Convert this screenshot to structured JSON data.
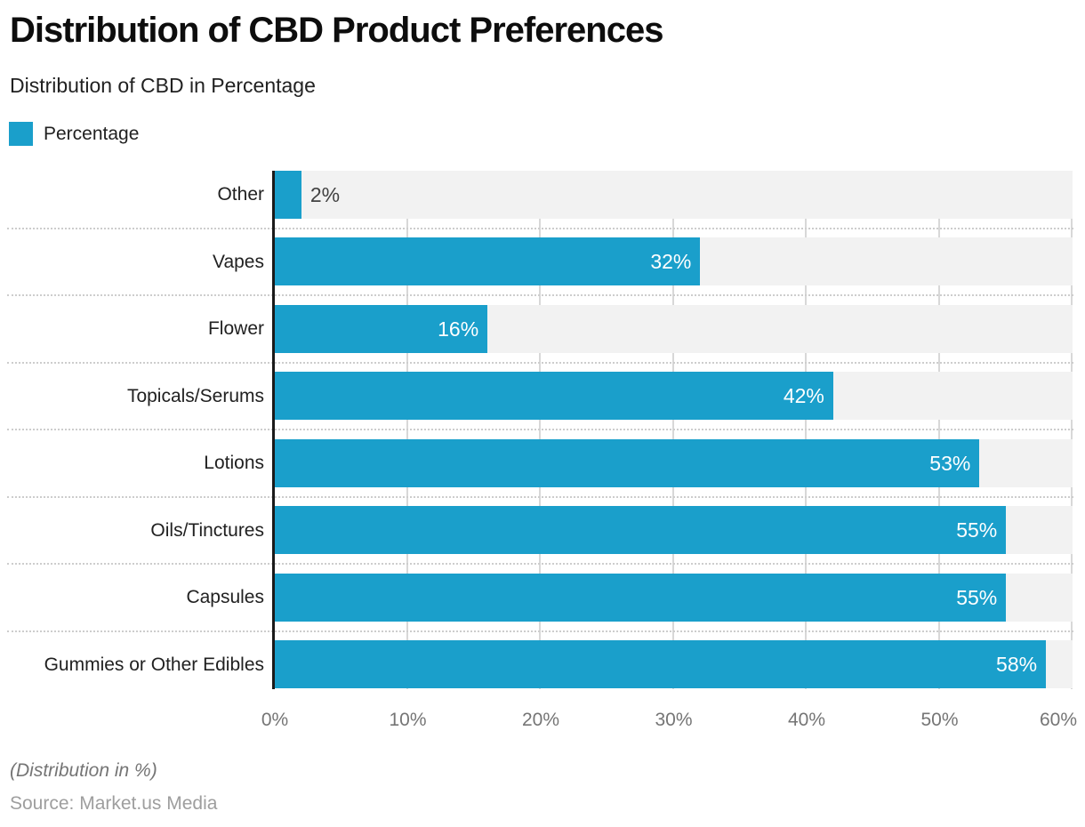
{
  "header": {
    "title": "Distribution of CBD Product Preferences",
    "subtitle": "Distribution of CBD in Percentage"
  },
  "legend": {
    "label": "Percentage"
  },
  "chart_data": {
    "type": "bar",
    "orientation": "horizontal",
    "title": "Distribution of CBD Product Preferences",
    "subtitle": "Distribution of CBD in Percentage",
    "series_name": "Percentage",
    "categories": [
      "Other",
      "Vapes",
      "Flower",
      "Topicals/Serums",
      "Lotions",
      "Oils/Tinctures",
      "Capsules",
      "Gummies or Other Edibles"
    ],
    "values": [
      2,
      32,
      16,
      42,
      53,
      55,
      55,
      58
    ],
    "value_labels": [
      "2%",
      "32%",
      "16%",
      "42%",
      "53%",
      "55%",
      "55%",
      "58%"
    ],
    "xlim": [
      0,
      60
    ],
    "x_ticks": [
      0,
      10,
      20,
      30,
      40,
      50,
      60
    ],
    "x_tick_labels": [
      "0%",
      "10%",
      "20%",
      "30%",
      "40%",
      "50%",
      "60%"
    ],
    "grid": true,
    "legend_position": "top-left",
    "colors": {
      "bar": "#1A9FCB",
      "track": "#F2F2F2",
      "gridline": "#D8D8D8",
      "axis_line": "#1A1A1A",
      "value_label_inside": "#FFFFFF",
      "value_label_outside": "#424242",
      "category_label": "#212121",
      "tick_label": "#757575"
    }
  },
  "footer": {
    "note": "(Distribution in %)",
    "source": "Source: Market.us Media"
  }
}
